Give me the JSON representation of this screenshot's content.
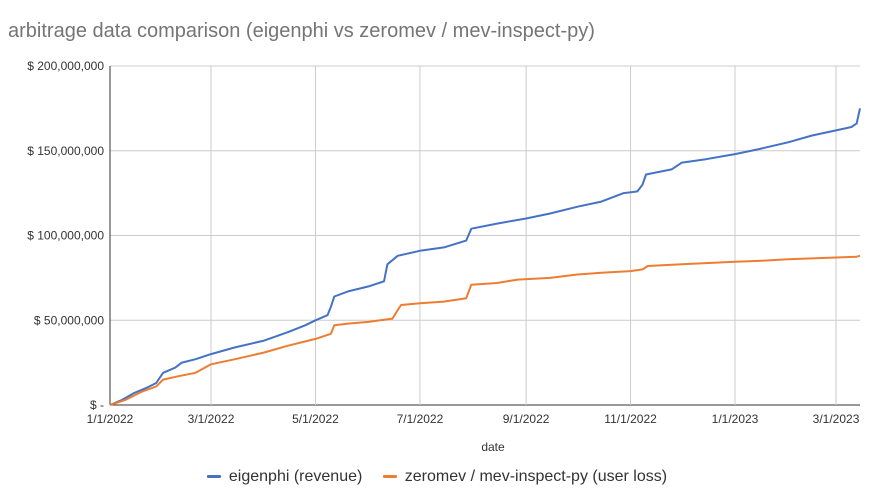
{
  "chart_data": {
    "type": "line",
    "title": "arbitrage data comparison (eigenphi vs zeromev / mev-inspect-py)",
    "xlabel": "date",
    "ylabel": "",
    "x_tick_labels": [
      "1/1/2022",
      "3/1/2022",
      "5/1/2022",
      "7/1/2022",
      "9/1/2022",
      "11/1/2022",
      "1/1/2023",
      "3/1/2023"
    ],
    "x_tick_dates": [
      "2022-01-01",
      "2022-03-01",
      "2022-05-01",
      "2022-07-01",
      "2022-09-01",
      "2022-11-01",
      "2023-01-01",
      "2023-03-01"
    ],
    "xlim": [
      "2022-01-01",
      "2023-03-15"
    ],
    "y_tick_labels": [
      "$ -",
      "$ 50,000,000",
      "$ 100,000,000",
      "$ 150,000,000",
      "$ 200,000,000"
    ],
    "y_tick_values": [
      0,
      50000000,
      100000000,
      150000000,
      200000000
    ],
    "ylim": [
      0,
      200000000
    ],
    "grid": true,
    "legend_position": "bottom",
    "series": [
      {
        "name": "eigenphi (revenue)",
        "color": "#4472c4",
        "points": [
          [
            "2022-01-01",
            0
          ],
          [
            "2022-01-08",
            3000000
          ],
          [
            "2022-01-15",
            7000000
          ],
          [
            "2022-01-22",
            10000000
          ],
          [
            "2022-01-28",
            13000000
          ],
          [
            "2022-02-01",
            19000000
          ],
          [
            "2022-02-08",
            22000000
          ],
          [
            "2022-02-12",
            25000000
          ],
          [
            "2022-02-20",
            27000000
          ],
          [
            "2022-03-01",
            30000000
          ],
          [
            "2022-03-15",
            34000000
          ],
          [
            "2022-04-01",
            38000000
          ],
          [
            "2022-04-15",
            43000000
          ],
          [
            "2022-04-25",
            47000000
          ],
          [
            "2022-05-01",
            50000000
          ],
          [
            "2022-05-08",
            53000000
          ],
          [
            "2022-05-10",
            58000000
          ],
          [
            "2022-05-12",
            64000000
          ],
          [
            "2022-05-20",
            67000000
          ],
          [
            "2022-06-01",
            70000000
          ],
          [
            "2022-06-10",
            73000000
          ],
          [
            "2022-06-12",
            83000000
          ],
          [
            "2022-06-18",
            88000000
          ],
          [
            "2022-07-01",
            91000000
          ],
          [
            "2022-07-15",
            93000000
          ],
          [
            "2022-07-28",
            97000000
          ],
          [
            "2022-07-31",
            104000000
          ],
          [
            "2022-08-15",
            107000000
          ],
          [
            "2022-09-01",
            110000000
          ],
          [
            "2022-09-15",
            113000000
          ],
          [
            "2022-10-01",
            117000000
          ],
          [
            "2022-10-15",
            120000000
          ],
          [
            "2022-10-28",
            125000000
          ],
          [
            "2022-11-05",
            126000000
          ],
          [
            "2022-11-08",
            130000000
          ],
          [
            "2022-11-10",
            136000000
          ],
          [
            "2022-11-25",
            139000000
          ],
          [
            "2022-12-01",
            143000000
          ],
          [
            "2022-12-15",
            145000000
          ],
          [
            "2023-01-01",
            148000000
          ],
          [
            "2023-01-15",
            151000000
          ],
          [
            "2023-02-01",
            155000000
          ],
          [
            "2023-02-15",
            159000000
          ],
          [
            "2023-03-01",
            162000000
          ],
          [
            "2023-03-10",
            164000000
          ],
          [
            "2023-03-13",
            166000000
          ],
          [
            "2023-03-15",
            175000000
          ]
        ]
      },
      {
        "name": "zeromev / mev-inspect-py (user loss)",
        "color": "#ed7d31",
        "points": [
          [
            "2022-01-01",
            0
          ],
          [
            "2022-01-10",
            3000000
          ],
          [
            "2022-01-20",
            8000000
          ],
          [
            "2022-01-28",
            11000000
          ],
          [
            "2022-02-01",
            15000000
          ],
          [
            "2022-02-10",
            17000000
          ],
          [
            "2022-02-20",
            19000000
          ],
          [
            "2022-03-01",
            24000000
          ],
          [
            "2022-03-15",
            27000000
          ],
          [
            "2022-04-01",
            31000000
          ],
          [
            "2022-04-15",
            35000000
          ],
          [
            "2022-05-01",
            39000000
          ],
          [
            "2022-05-10",
            42000000
          ],
          [
            "2022-05-12",
            47000000
          ],
          [
            "2022-05-20",
            48000000
          ],
          [
            "2022-06-01",
            49000000
          ],
          [
            "2022-06-15",
            51000000
          ],
          [
            "2022-06-18",
            56000000
          ],
          [
            "2022-06-20",
            59000000
          ],
          [
            "2022-07-01",
            60000000
          ],
          [
            "2022-07-15",
            61000000
          ],
          [
            "2022-07-28",
            63000000
          ],
          [
            "2022-07-31",
            71000000
          ],
          [
            "2022-08-15",
            72000000
          ],
          [
            "2022-08-27",
            74000000
          ],
          [
            "2022-09-15",
            75000000
          ],
          [
            "2022-10-01",
            77000000
          ],
          [
            "2022-10-15",
            78000000
          ],
          [
            "2022-11-01",
            79000000
          ],
          [
            "2022-11-08",
            80000000
          ],
          [
            "2022-11-11",
            82000000
          ],
          [
            "2022-12-01",
            83000000
          ],
          [
            "2023-01-01",
            84500000
          ],
          [
            "2023-01-15",
            85000000
          ],
          [
            "2023-02-01",
            86000000
          ],
          [
            "2023-03-01",
            87000000
          ],
          [
            "2023-03-13",
            87500000
          ],
          [
            "2023-03-15",
            88000000
          ]
        ]
      }
    ]
  }
}
